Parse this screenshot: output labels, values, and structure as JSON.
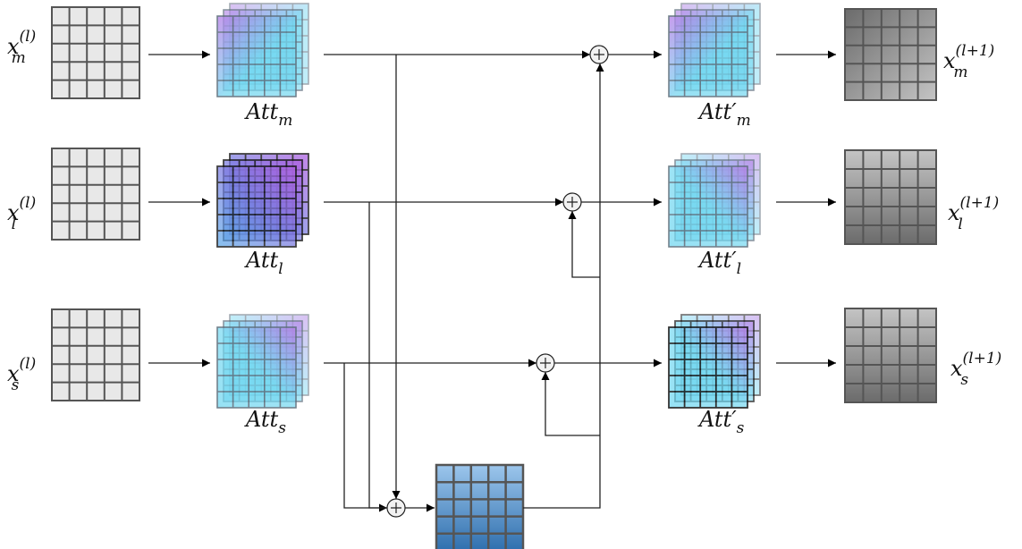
{
  "inputs": [
    {
      "id": "m",
      "base": "x",
      "sup": "(l)",
      "sub": "m"
    },
    {
      "id": "l",
      "base": "x",
      "sup": "(l)",
      "sub": "l"
    },
    {
      "id": "s",
      "base": "x",
      "sup": "(l)",
      "sub": "s"
    }
  ],
  "attention": [
    {
      "id": "m",
      "base": "Att",
      "sub": "m",
      "prime": ""
    },
    {
      "id": "l",
      "base": "Att",
      "sub": "l",
      "prime": ""
    },
    {
      "id": "s",
      "base": "Att",
      "sub": "s",
      "prime": ""
    }
  ],
  "attention_out": [
    {
      "id": "m",
      "base": "Att",
      "sub": "m",
      "prime": "′"
    },
    {
      "id": "l",
      "base": "Att",
      "sub": "l",
      "prime": "′"
    },
    {
      "id": "s",
      "base": "Att",
      "sub": "s",
      "prime": "′"
    }
  ],
  "outputs": [
    {
      "id": "m",
      "base": "x",
      "sup": "(l+1)",
      "sub": "m"
    },
    {
      "id": "l",
      "base": "x",
      "sup": "(l+1)",
      "sub": "l"
    },
    {
      "id": "s",
      "base": "x",
      "sup": "(l+1)",
      "sub": "s"
    }
  ],
  "colors": {
    "input_cell": "#e8e8e8",
    "purple": "#b57ee6",
    "cyan": "#6fd6f0",
    "fused_top": "#9cc6ec",
    "fused_bottom": "#2f6fae",
    "gray_dark": "#6b6b6b",
    "gray_light": "#c4c4c4"
  }
}
